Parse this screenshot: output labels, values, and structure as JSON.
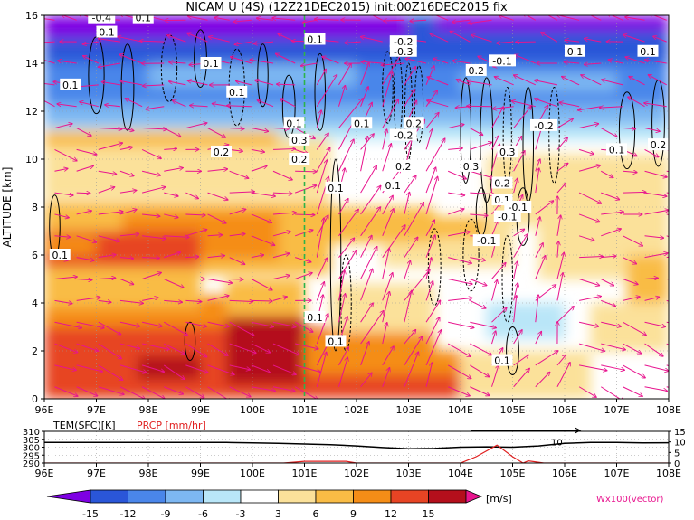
{
  "chart_data": [
    {
      "type": "heatmap",
      "title": "NICAM U (4S) (12Z21DEC2015) init:00Z16DEC2015 fix",
      "ylabel": "ALTITUDE [km]",
      "xlim": [
        96,
        108
      ],
      "ylim": [
        0,
        16
      ],
      "x_ticks": [
        "96E",
        "97E",
        "98E",
        "99E",
        "100E",
        "101E",
        "102E",
        "103E",
        "104E",
        "105E",
        "106E",
        "107E",
        "108E"
      ],
      "y_ticks": [
        "0",
        "2",
        "4",
        "6",
        "8",
        "10",
        "12",
        "14",
        "16"
      ],
      "marker_longitude": 101,
      "grid": true,
      "contour_labels": [
        {
          "text": "0.1",
          "x": 96.3,
          "y": 6.0
        },
        {
          "text": "0.1",
          "x": 96.5,
          "y": 13.1
        },
        {
          "text": "0.1",
          "x": 97.2,
          "y": 15.3
        },
        {
          "text": "0.1",
          "x": 99.2,
          "y": 14.0
        },
        {
          "text": "0.1",
          "x": 99.7,
          "y": 12.8
        },
        {
          "text": "0.2",
          "x": 99.4,
          "y": 10.3
        },
        {
          "text": "0.1",
          "x": 100.8,
          "y": 11.5
        },
        {
          "text": "0.3",
          "x": 100.9,
          "y": 10.8
        },
        {
          "text": "0.2",
          "x": 100.9,
          "y": 10.0
        },
        {
          "text": "0.1",
          "x": 101.2,
          "y": 15.0
        },
        {
          "text": "0.1",
          "x": 101.6,
          "y": 8.8
        },
        {
          "text": "0.1",
          "x": 102.1,
          "y": 11.5
        },
        {
          "text": "-0.2",
          "x": 102.9,
          "y": 14.9
        },
        {
          "text": "-0.3",
          "x": 102.9,
          "y": 14.5
        },
        {
          "text": "-0.2",
          "x": 102.9,
          "y": 11.0
        },
        {
          "text": "0.2",
          "x": 103.1,
          "y": 11.5
        },
        {
          "text": "0.2",
          "x": 102.9,
          "y": 9.7
        },
        {
          "text": "0.1",
          "x": 102.7,
          "y": 8.9
        },
        {
          "text": "0.2",
          "x": 104.3,
          "y": 13.7
        },
        {
          "text": "-0.1",
          "x": 104.8,
          "y": 14.1
        },
        {
          "text": "0.3",
          "x": 104.2,
          "y": 9.7
        },
        {
          "text": "0.3",
          "x": 104.9,
          "y": 10.3
        },
        {
          "text": "0.2",
          "x": 104.8,
          "y": 9.0
        },
        {
          "text": "0.1",
          "x": 104.8,
          "y": 8.3
        },
        {
          "text": "-0.1",
          "x": 104.9,
          "y": 7.6
        },
        {
          "text": "-0.1",
          "x": 105.1,
          "y": 8.0
        },
        {
          "text": "-0.2",
          "x": 105.6,
          "y": 11.4
        },
        {
          "text": "-0.1",
          "x": 104.5,
          "y": 6.6
        },
        {
          "text": "0.1",
          "x": 106.2,
          "y": 14.5
        },
        {
          "text": "0.1",
          "x": 107.6,
          "y": 14.5
        },
        {
          "text": "0.1",
          "x": 107.0,
          "y": 10.4
        },
        {
          "text": "0.2",
          "x": 107.8,
          "y": 10.6
        },
        {
          "text": "0.1",
          "x": 104.8,
          "y": 1.6
        },
        {
          "text": "0.1",
          "x": 101.2,
          "y": 3.4
        },
        {
          "text": "0.1",
          "x": 101.6,
          "y": 2.4
        },
        {
          "text": "-0.4",
          "x": 97.1,
          "y": 15.9
        },
        {
          "text": "0.1",
          "x": 97.9,
          "y": 15.9
        }
      ]
    },
    {
      "type": "line",
      "xlim": [
        96,
        108
      ],
      "x_ticks": [
        "96E",
        "97E",
        "98E",
        "99E",
        "100E",
        "101E",
        "102E",
        "103E",
        "104E",
        "105E",
        "106E",
        "107E",
        "108E"
      ],
      "left_axis": {
        "label": "TEM(SFC)[K]",
        "ticks": [
          "290",
          "295",
          "300",
          "305",
          "310"
        ],
        "range": [
          290,
          310
        ]
      },
      "right_axis": {
        "label": "PRCP [mm/hr]",
        "ticks": [
          "0",
          "5",
          "10",
          "15"
        ],
        "range": [
          0,
          15
        ]
      },
      "series": [
        {
          "name": "TEM(SFC)[K]",
          "color": "#000000",
          "x": [
            96,
            96.5,
            97,
            97.5,
            98,
            98.5,
            99,
            99.5,
            100,
            100.5,
            101,
            101.5,
            102,
            102.5,
            103,
            103.5,
            104,
            104.5,
            105,
            105.5,
            106,
            106.5,
            107,
            107.5,
            108
          ],
          "y": [
            303,
            303,
            303,
            303,
            303,
            303,
            303,
            303,
            302.7,
            302.4,
            302,
            301.6,
            300.8,
            299.8,
            299,
            299.2,
            300,
            300.2,
            300,
            300.8,
            302.4,
            303,
            303,
            302.7,
            302.8
          ]
        },
        {
          "name": "PRCP [mm/hr]",
          "color": "#e02020",
          "x": [
            96,
            100.6,
            101,
            101.4,
            101.8,
            102,
            103,
            104,
            104.3,
            104.7,
            105,
            105.2,
            105.3,
            105.6,
            106,
            108
          ],
          "y": [
            0,
            0,
            0.8,
            0.8,
            0.8,
            0,
            0,
            0,
            3,
            8.5,
            3,
            0,
            1,
            0,
            0,
            0
          ]
        }
      ],
      "annotations": [
        {
          "text": "10",
          "x": 105.85,
          "y": 10
        }
      ]
    }
  ],
  "colorbar": {
    "levels": [
      "-15",
      "-12",
      "-9",
      "-6",
      "-3",
      "3",
      "6",
      "9",
      "12",
      "15"
    ],
    "colors": [
      "#7e00e3",
      "#2a56d8",
      "#4a86ea",
      "#7db7f2",
      "#b9e6f8",
      "#ffffff",
      "#fbe19a",
      "#f9bc45",
      "#f58d17",
      "#e74424",
      "#b40f1c",
      "#e8148e"
    ],
    "unit": "[m/s]",
    "vector_label": "Wx100(vector)"
  }
}
